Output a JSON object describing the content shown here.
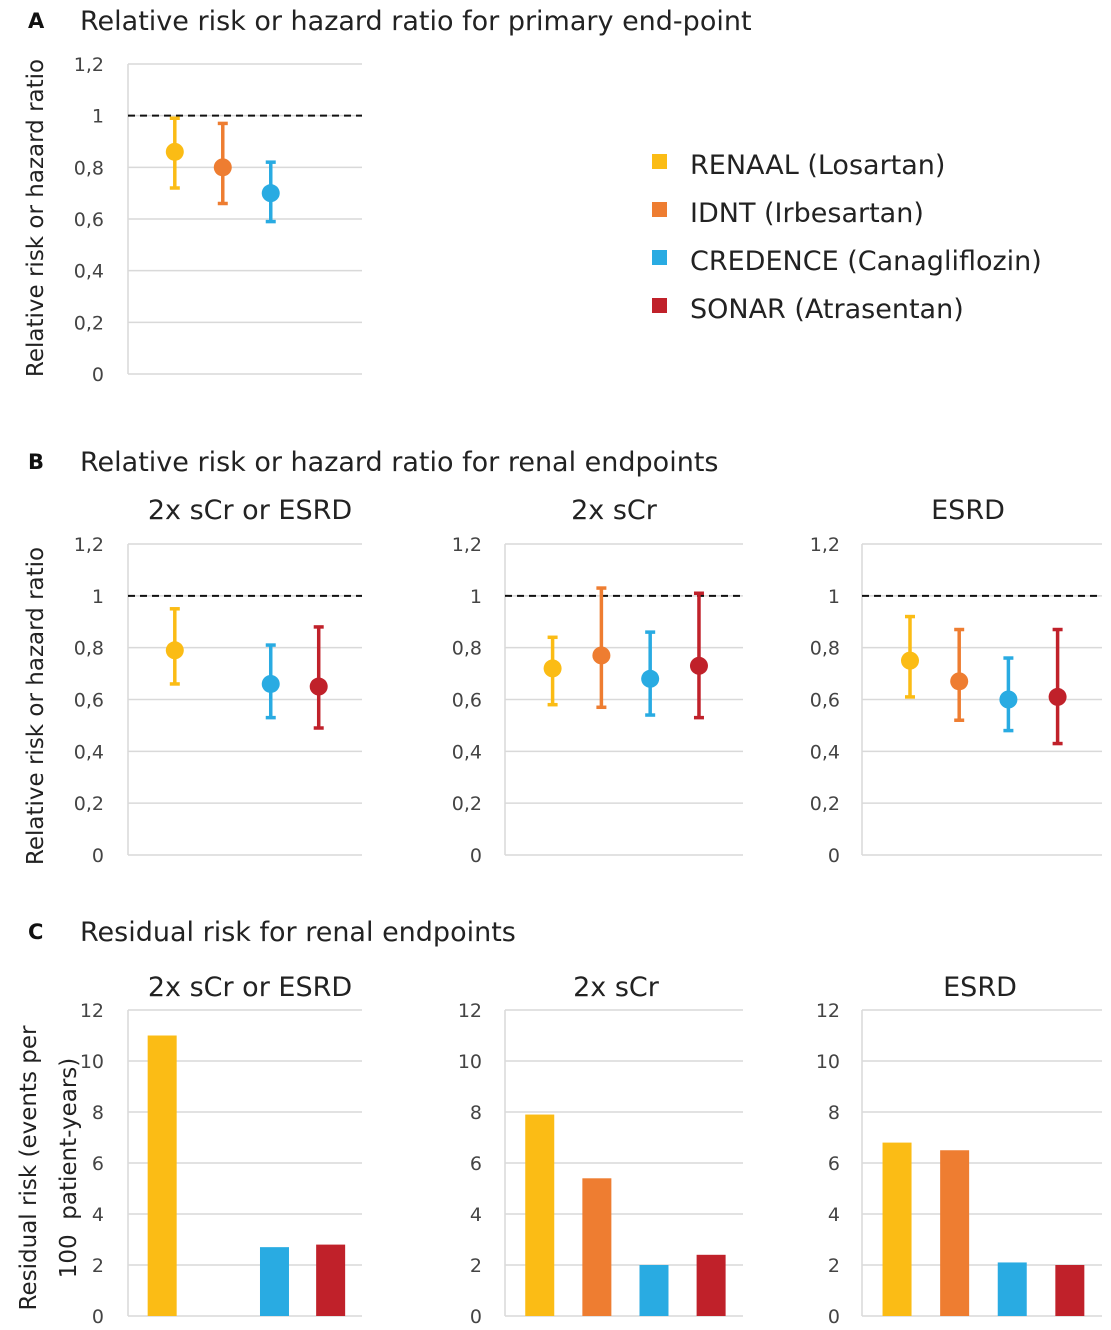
{
  "panels": {
    "A": {
      "label": "A",
      "title": "Relative risk or hazard ratio for primary end-point"
    },
    "B": {
      "label": "B",
      "title": "Relative risk or hazard ratio for renal endpoints"
    },
    "C": {
      "label": "C",
      "title": "Residual risk for renal endpoints"
    }
  },
  "legend": [
    {
      "name": "RENAAL (Losartan)",
      "color": "#FBBC15"
    },
    {
      "name": "IDNT (Irbesartan)",
      "color": "#EE7D31"
    },
    {
      "name": "CREDENCE (Canagliflozin)",
      "color": "#29ABE2"
    },
    {
      "name": "SONAR (Atrasentan)",
      "color": "#C0212A"
    }
  ],
  "chart_data": [
    {
      "id": "A1",
      "type": "scatter",
      "title": "",
      "ylabel": "Relative risk or hazard ratio",
      "ylim": [
        0,
        1.2
      ],
      "yticks": [
        "0",
        "0,2",
        "0,4",
        "0,6",
        "0,8",
        "1",
        "1,2"
      ],
      "reference_line": 1,
      "series": [
        {
          "name": "RENAAL (Losartan)",
          "value": 0.86,
          "ci": [
            0.72,
            0.99
          ]
        },
        {
          "name": "IDNT (Irbesartan)",
          "value": 0.8,
          "ci": [
            0.66,
            0.97
          ]
        },
        {
          "name": "CREDENCE (Canagliflozin)",
          "value": 0.7,
          "ci": [
            0.59,
            0.82
          ]
        }
      ]
    },
    {
      "id": "B1",
      "type": "scatter",
      "title": "2x sCr or ESRD",
      "ylabel": "Relative risk or hazard ratio",
      "ylim": [
        0,
        1.2
      ],
      "yticks": [
        "0",
        "0,2",
        "0,4",
        "0,6",
        "0,8",
        "1",
        "1,2"
      ],
      "reference_line": 1,
      "series": [
        {
          "name": "RENAAL (Losartan)",
          "value": 0.79,
          "ci": [
            0.66,
            0.95
          ]
        },
        {
          "name": "IDNT (Irbesartan)",
          "value": null,
          "ci": null
        },
        {
          "name": "CREDENCE (Canagliflozin)",
          "value": 0.66,
          "ci": [
            0.53,
            0.81
          ]
        },
        {
          "name": "SONAR (Atrasentan)",
          "value": 0.65,
          "ci": [
            0.49,
            0.88
          ]
        }
      ]
    },
    {
      "id": "B2",
      "type": "scatter",
      "title": "2x sCr",
      "ylabel": "",
      "ylim": [
        0,
        1.2
      ],
      "yticks": [
        "0",
        "0,2",
        "0,4",
        "0,6",
        "0,8",
        "1",
        "1,2"
      ],
      "reference_line": 1,
      "series": [
        {
          "name": "RENAAL (Losartan)",
          "value": 0.72,
          "ci": [
            0.58,
            0.84
          ]
        },
        {
          "name": "IDNT (Irbesartan)",
          "value": 0.77,
          "ci": [
            0.57,
            1.03
          ]
        },
        {
          "name": "CREDENCE (Canagliflozin)",
          "value": 0.68,
          "ci": [
            0.54,
            0.86
          ]
        },
        {
          "name": "SONAR (Atrasentan)",
          "value": 0.73,
          "ci": [
            0.53,
            1.01
          ]
        }
      ]
    },
    {
      "id": "B3",
      "type": "scatter",
      "title": "ESRD",
      "ylabel": "",
      "ylim": [
        0,
        1.2
      ],
      "yticks": [
        "0",
        "0,2",
        "0,4",
        "0,6",
        "0,8",
        "1",
        "1,2"
      ],
      "reference_line": 1,
      "series": [
        {
          "name": "RENAAL (Losartan)",
          "value": 0.75,
          "ci": [
            0.61,
            0.92
          ]
        },
        {
          "name": "IDNT (Irbesartan)",
          "value": 0.67,
          "ci": [
            0.52,
            0.87
          ]
        },
        {
          "name": "CREDENCE (Canagliflozin)",
          "value": 0.6,
          "ci": [
            0.48,
            0.76
          ]
        },
        {
          "name": "SONAR (Atrasentan)",
          "value": 0.61,
          "ci": [
            0.43,
            0.87
          ]
        }
      ]
    },
    {
      "id": "C1",
      "type": "bar",
      "title": "2x sCr or ESRD",
      "ylabel": "Residual risk (events per 100  patient-years)",
      "ylabel_lines": [
        "Residual risk (events per",
        "100  patient-years)"
      ],
      "ylim": [
        0,
        12
      ],
      "yticks": [
        "0",
        "2",
        "4",
        "6",
        "8",
        "10",
        "12"
      ],
      "categories": [
        "RENAAL (Losartan)",
        "IDNT (Irbesartan)",
        "CREDENCE (Canagliflozin)",
        "SONAR (Atrasentan)"
      ],
      "values": [
        11.0,
        null,
        2.7,
        2.8
      ]
    },
    {
      "id": "C2",
      "type": "bar",
      "title": "2x sCr",
      "ylabel": "",
      "ylim": [
        0,
        12
      ],
      "yticks": [
        "0",
        "2",
        "4",
        "6",
        "8",
        "10",
        "12"
      ],
      "categories": [
        "RENAAL (Losartan)",
        "IDNT (Irbesartan)",
        "CREDENCE (Canagliflozin)",
        "SONAR (Atrasentan)"
      ],
      "values": [
        7.9,
        5.4,
        2.0,
        2.4
      ]
    },
    {
      "id": "C3",
      "type": "bar",
      "title": "ESRD",
      "ylabel": "",
      "ylim": [
        0,
        12
      ],
      "yticks": [
        "0",
        "2",
        "4",
        "6",
        "8",
        "10",
        "12"
      ],
      "categories": [
        "RENAAL (Losartan)",
        "IDNT (Irbesartan)",
        "CREDENCE (Canagliflozin)",
        "SONAR (Atrasentan)"
      ],
      "values": [
        6.8,
        6.5,
        2.1,
        2.0
      ]
    }
  ]
}
